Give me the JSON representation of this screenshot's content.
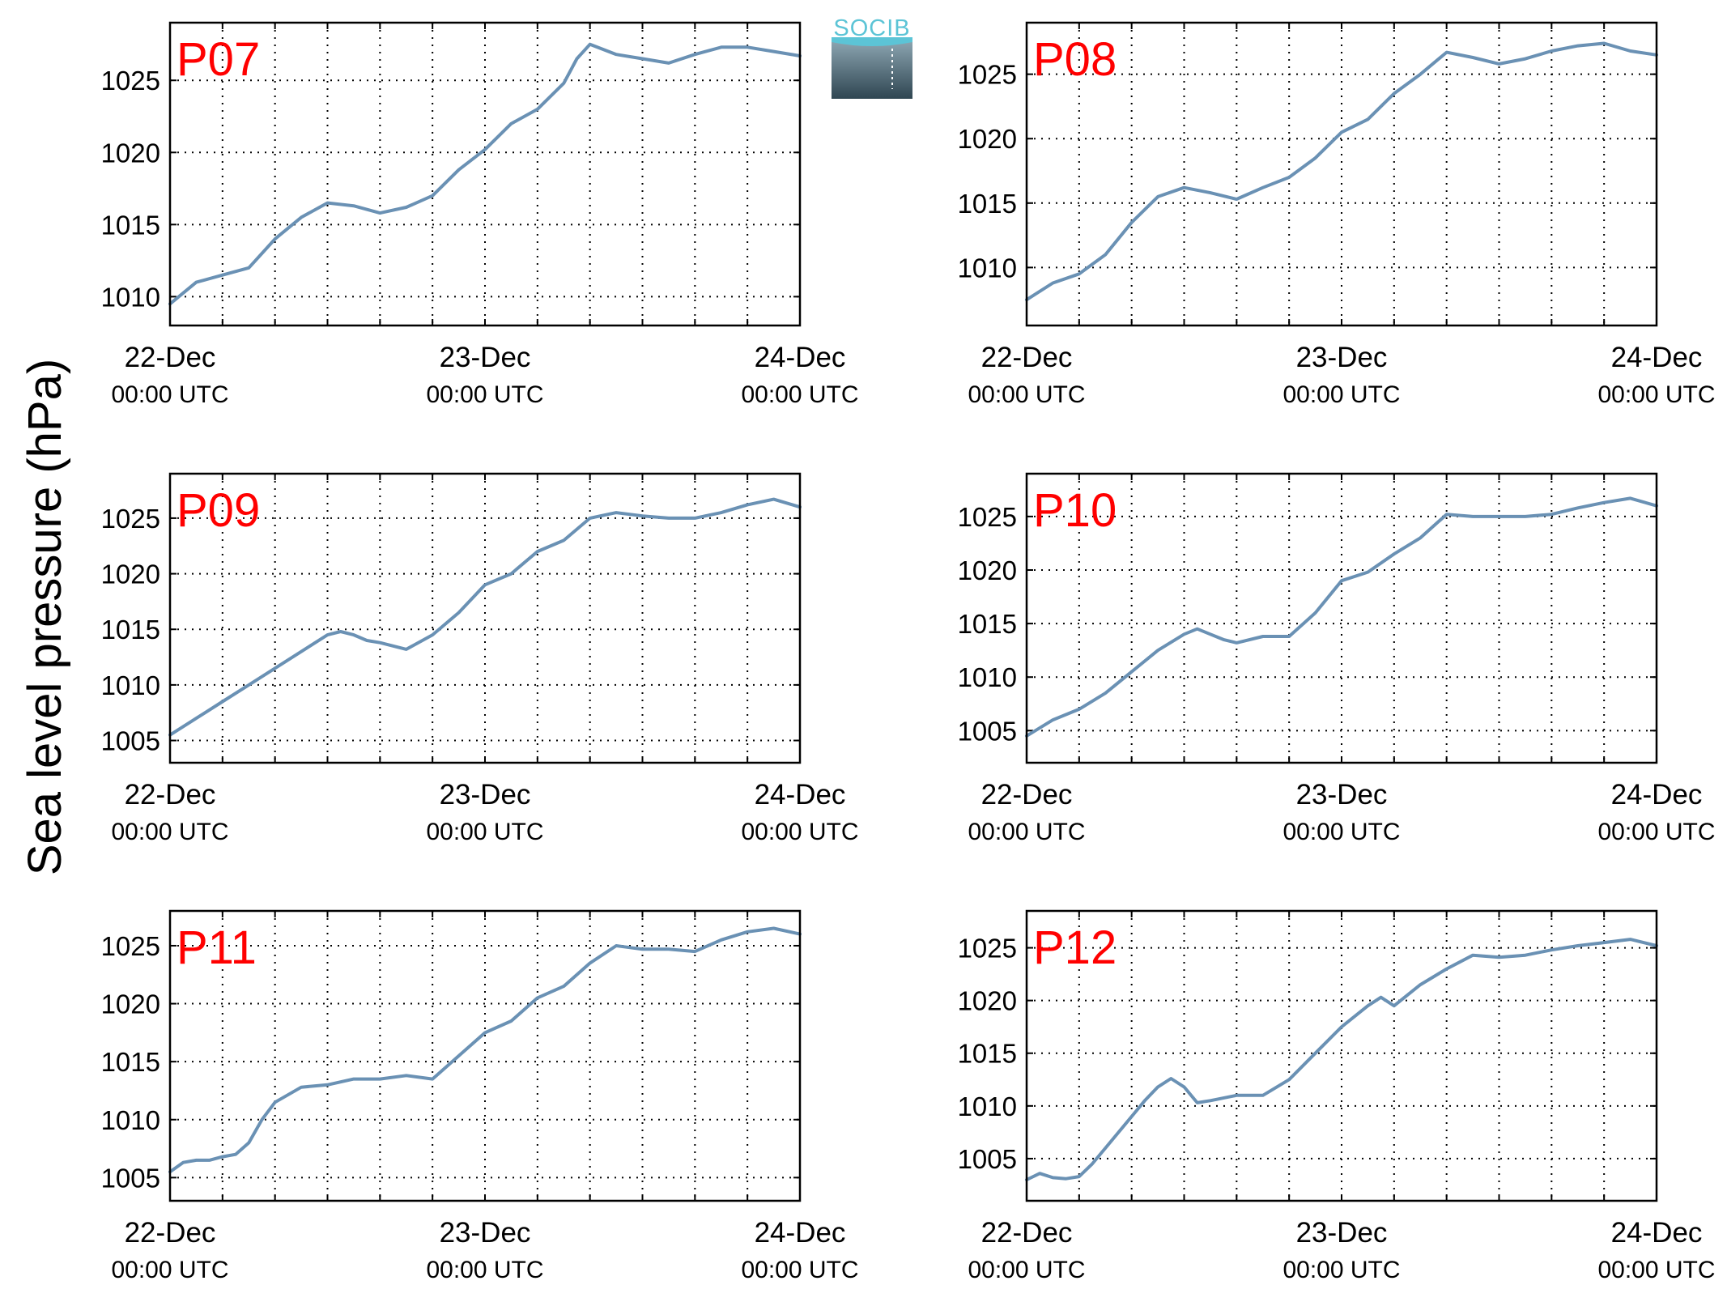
{
  "figure": {
    "ylabel": "Sea level pressure (hPa)",
    "logo_text": "SOCIB",
    "line_color": "#6a91b4",
    "title_color": "#ff0000"
  },
  "chart_data": [
    {
      "type": "line",
      "title": "P07",
      "ylim": [
        1008,
        1029
      ],
      "yticks": [
        1010,
        1015,
        1020,
        1025
      ],
      "xlim": [
        0,
        48
      ],
      "xticks": [
        {
          "x": 0,
          "date": "22-Dec",
          "time": "00:00 UTC"
        },
        {
          "x": 24,
          "date": "23-Dec",
          "time": "00:00 UTC"
        },
        {
          "x": 48,
          "date": "24-Dec",
          "time": "00:00 UTC"
        }
      ],
      "grid": true,
      "series": [
        {
          "x": [
            0,
            2,
            4,
            6,
            8,
            10,
            12,
            14,
            16,
            18,
            20,
            22,
            24,
            26,
            28,
            30,
            31,
            32,
            34,
            36,
            38,
            40,
            42,
            44,
            46,
            48
          ],
          "values": [
            1009.5,
            1011,
            1011.5,
            1012,
            1014,
            1015.5,
            1016.5,
            1016.3,
            1015.8,
            1016.2,
            1017,
            1018.8,
            1020.2,
            1022,
            1023,
            1024.8,
            1026.5,
            1027.5,
            1026.8,
            1026.5,
            1026.2,
            1026.8,
            1027.3,
            1027.3,
            1027,
            1026.7
          ]
        }
      ]
    },
    {
      "type": "line",
      "title": "P08",
      "ylim": [
        1005.5,
        1029
      ],
      "yticks": [
        1010,
        1015,
        1020,
        1025
      ],
      "xlim": [
        0,
        48
      ],
      "xticks": [
        {
          "x": 0,
          "date": "22-Dec",
          "time": "00:00 UTC"
        },
        {
          "x": 24,
          "date": "23-Dec",
          "time": "00:00 UTC"
        },
        {
          "x": 48,
          "date": "24-Dec",
          "time": "00:00 UTC"
        }
      ],
      "grid": true,
      "series": [
        {
          "x": [
            0,
            2,
            4,
            6,
            8,
            10,
            12,
            14,
            16,
            18,
            20,
            22,
            24,
            26,
            28,
            30,
            32,
            34,
            36,
            38,
            40,
            42,
            44,
            46,
            48
          ],
          "values": [
            1007.5,
            1008.8,
            1009.5,
            1011,
            1013.5,
            1015.5,
            1016.2,
            1015.8,
            1015.3,
            1016.2,
            1017,
            1018.5,
            1020.5,
            1021.5,
            1023.5,
            1025,
            1026.7,
            1026.3,
            1025.8,
            1026.2,
            1026.8,
            1027.2,
            1027.4,
            1026.8,
            1026.5
          ]
        }
      ]
    },
    {
      "type": "line",
      "title": "P09",
      "ylim": [
        1003,
        1029
      ],
      "yticks": [
        1005,
        1010,
        1015,
        1020,
        1025
      ],
      "xlim": [
        0,
        48
      ],
      "xticks": [
        {
          "x": 0,
          "date": "22-Dec",
          "time": "00:00 UTC"
        },
        {
          "x": 24,
          "date": "23-Dec",
          "time": "00:00 UTC"
        },
        {
          "x": 48,
          "date": "24-Dec",
          "time": "00:00 UTC"
        }
      ],
      "grid": true,
      "series": [
        {
          "x": [
            0,
            2,
            4,
            6,
            8,
            10,
            12,
            13,
            14,
            15,
            16,
            18,
            20,
            22,
            24,
            26,
            28,
            30,
            32,
            34,
            36,
            38,
            40,
            42,
            44,
            46,
            48
          ],
          "values": [
            1005.5,
            1007,
            1008.5,
            1010,
            1011.5,
            1013,
            1014.5,
            1014.8,
            1014.5,
            1014,
            1013.8,
            1013.2,
            1014.5,
            1016.5,
            1019,
            1020,
            1022,
            1023,
            1025,
            1025.5,
            1025.2,
            1025,
            1025,
            1025.5,
            1026.2,
            1026.7,
            1026
          ]
        }
      ]
    },
    {
      "type": "line",
      "title": "P10",
      "ylim": [
        1002,
        1029
      ],
      "yticks": [
        1005,
        1010,
        1015,
        1020,
        1025
      ],
      "xlim": [
        0,
        48
      ],
      "xticks": [
        {
          "x": 0,
          "date": "22-Dec",
          "time": "00:00 UTC"
        },
        {
          "x": 24,
          "date": "23-Dec",
          "time": "00:00 UTC"
        },
        {
          "x": 48,
          "date": "24-Dec",
          "time": "00:00 UTC"
        }
      ],
      "grid": true,
      "series": [
        {
          "x": [
            0,
            2,
            4,
            6,
            8,
            10,
            12,
            13,
            14,
            15,
            16,
            18,
            20,
            22,
            24,
            26,
            28,
            30,
            32,
            34,
            36,
            38,
            40,
            42,
            44,
            46,
            48
          ],
          "values": [
            1004.5,
            1006,
            1007,
            1008.5,
            1010.5,
            1012.5,
            1014,
            1014.5,
            1014,
            1013.5,
            1013.2,
            1013.8,
            1013.8,
            1016,
            1019,
            1019.8,
            1021.5,
            1023,
            1025.2,
            1025,
            1025,
            1025,
            1025.2,
            1025.8,
            1026.3,
            1026.7,
            1026
          ]
        }
      ]
    },
    {
      "type": "line",
      "title": "P11",
      "ylim": [
        1003,
        1028
      ],
      "yticks": [
        1005,
        1010,
        1015,
        1020,
        1025
      ],
      "xlim": [
        0,
        48
      ],
      "xticks": [
        {
          "x": 0,
          "date": "22-Dec",
          "time": "00:00 UTC"
        },
        {
          "x": 24,
          "date": "23-Dec",
          "time": "00:00 UTC"
        },
        {
          "x": 48,
          "date": "24-Dec",
          "time": "00:00 UTC"
        }
      ],
      "grid": true,
      "series": [
        {
          "x": [
            0,
            1,
            2,
            3,
            4,
            5,
            6,
            7,
            8,
            10,
            12,
            14,
            16,
            18,
            20,
            22,
            24,
            26,
            28,
            30,
            32,
            34,
            36,
            38,
            40,
            42,
            44,
            46,
            48
          ],
          "values": [
            1005.5,
            1006.3,
            1006.5,
            1006.5,
            1006.8,
            1007,
            1008,
            1010,
            1011.5,
            1012.8,
            1013,
            1013.5,
            1013.5,
            1013.8,
            1013.5,
            1015.5,
            1017.5,
            1018.5,
            1020.5,
            1021.5,
            1023.5,
            1025,
            1024.7,
            1024.7,
            1024.5,
            1025.5,
            1026.2,
            1026.5,
            1026
          ]
        }
      ]
    },
    {
      "type": "line",
      "title": "P12",
      "ylim": [
        1001,
        1028.5
      ],
      "yticks": [
        1005,
        1010,
        1015,
        1020,
        1025
      ],
      "xlim": [
        0,
        48
      ],
      "xticks": [
        {
          "x": 0,
          "date": "22-Dec",
          "time": "00:00 UTC"
        },
        {
          "x": 24,
          "date": "23-Dec",
          "time": "00:00 UTC"
        },
        {
          "x": 48,
          "date": "24-Dec",
          "time": "00:00 UTC"
        }
      ],
      "grid": true,
      "series": [
        {
          "x": [
            0,
            1,
            2,
            3,
            4,
            5,
            6,
            7,
            8,
            9,
            10,
            11,
            12,
            13,
            14,
            16,
            18,
            20,
            22,
            24,
            26,
            27,
            28,
            30,
            32,
            34,
            36,
            38,
            40,
            42,
            44,
            46,
            48
          ],
          "values": [
            1003,
            1003.6,
            1003.2,
            1003.1,
            1003.3,
            1004.5,
            1006,
            1007.5,
            1009,
            1010.5,
            1011.8,
            1012.6,
            1011.8,
            1010.3,
            1010.5,
            1011,
            1011,
            1012.5,
            1015,
            1017.5,
            1019.5,
            1020.3,
            1019.5,
            1021.5,
            1023,
            1024.3,
            1024.1,
            1024.3,
            1024.8,
            1025.2,
            1025.5,
            1025.8,
            1025.2
          ]
        }
      ]
    }
  ]
}
